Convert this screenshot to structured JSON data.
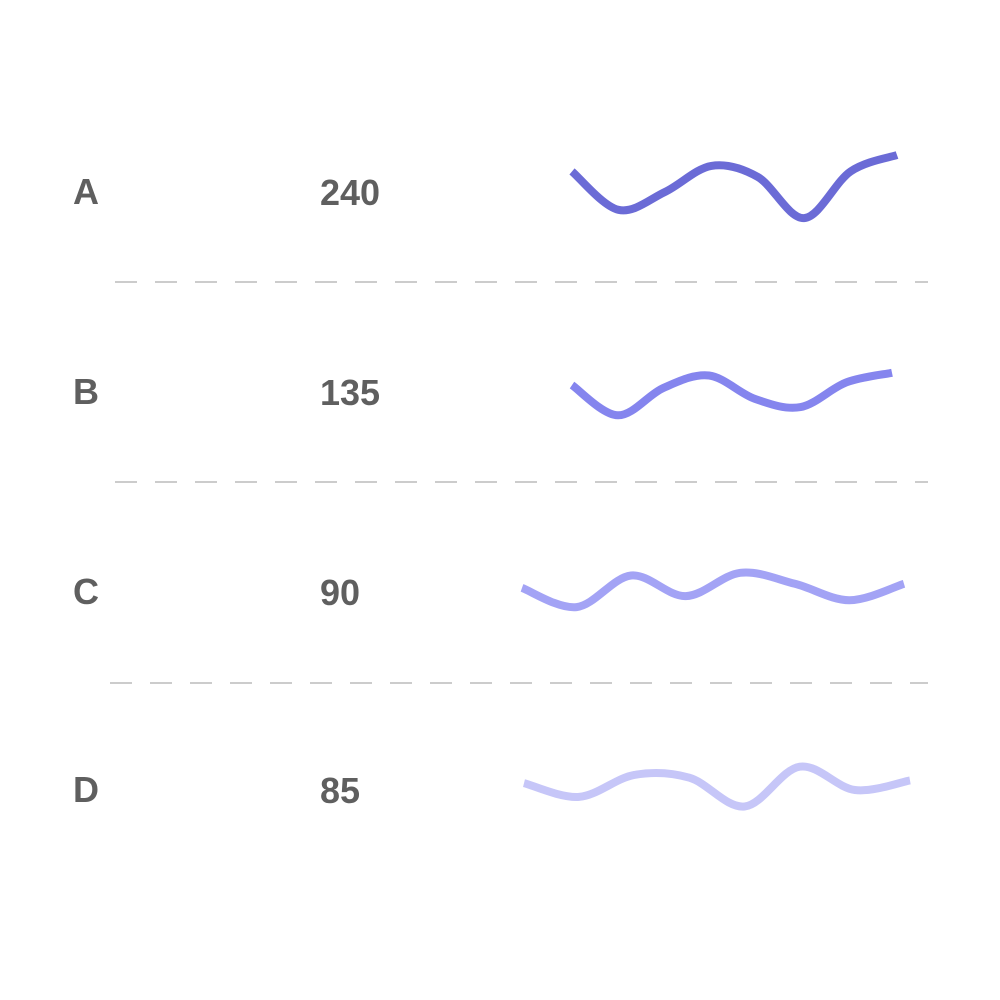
{
  "chart_data": {
    "type": "table",
    "columns": [
      "",
      "",
      ""
    ],
    "rows": [
      {
        "label": "A",
        "value": "240",
        "color": "#6b6bd6",
        "trend": [
          5,
          2.2,
          3.5,
          5.4,
          4.6,
          1.6,
          5.0,
          6.2
        ]
      },
      {
        "label": "B",
        "value": "135",
        "color": "#8585ee",
        "trend": [
          4.0,
          1.8,
          3.8,
          4.7,
          3.0,
          2.4,
          4.2,
          4.9
        ]
      },
      {
        "label": "C",
        "value": "90",
        "color": "#a3a3f5",
        "trend": [
          3.8,
          2.4,
          4.7,
          3.2,
          4.9,
          4.1,
          2.9,
          4.1
        ]
      },
      {
        "label": "D",
        "value": "85",
        "color": "#c6c6f8",
        "trend": [
          4.0,
          3.0,
          4.6,
          4.4,
          2.3,
          5.2,
          3.5,
          4.2
        ]
      }
    ]
  }
}
